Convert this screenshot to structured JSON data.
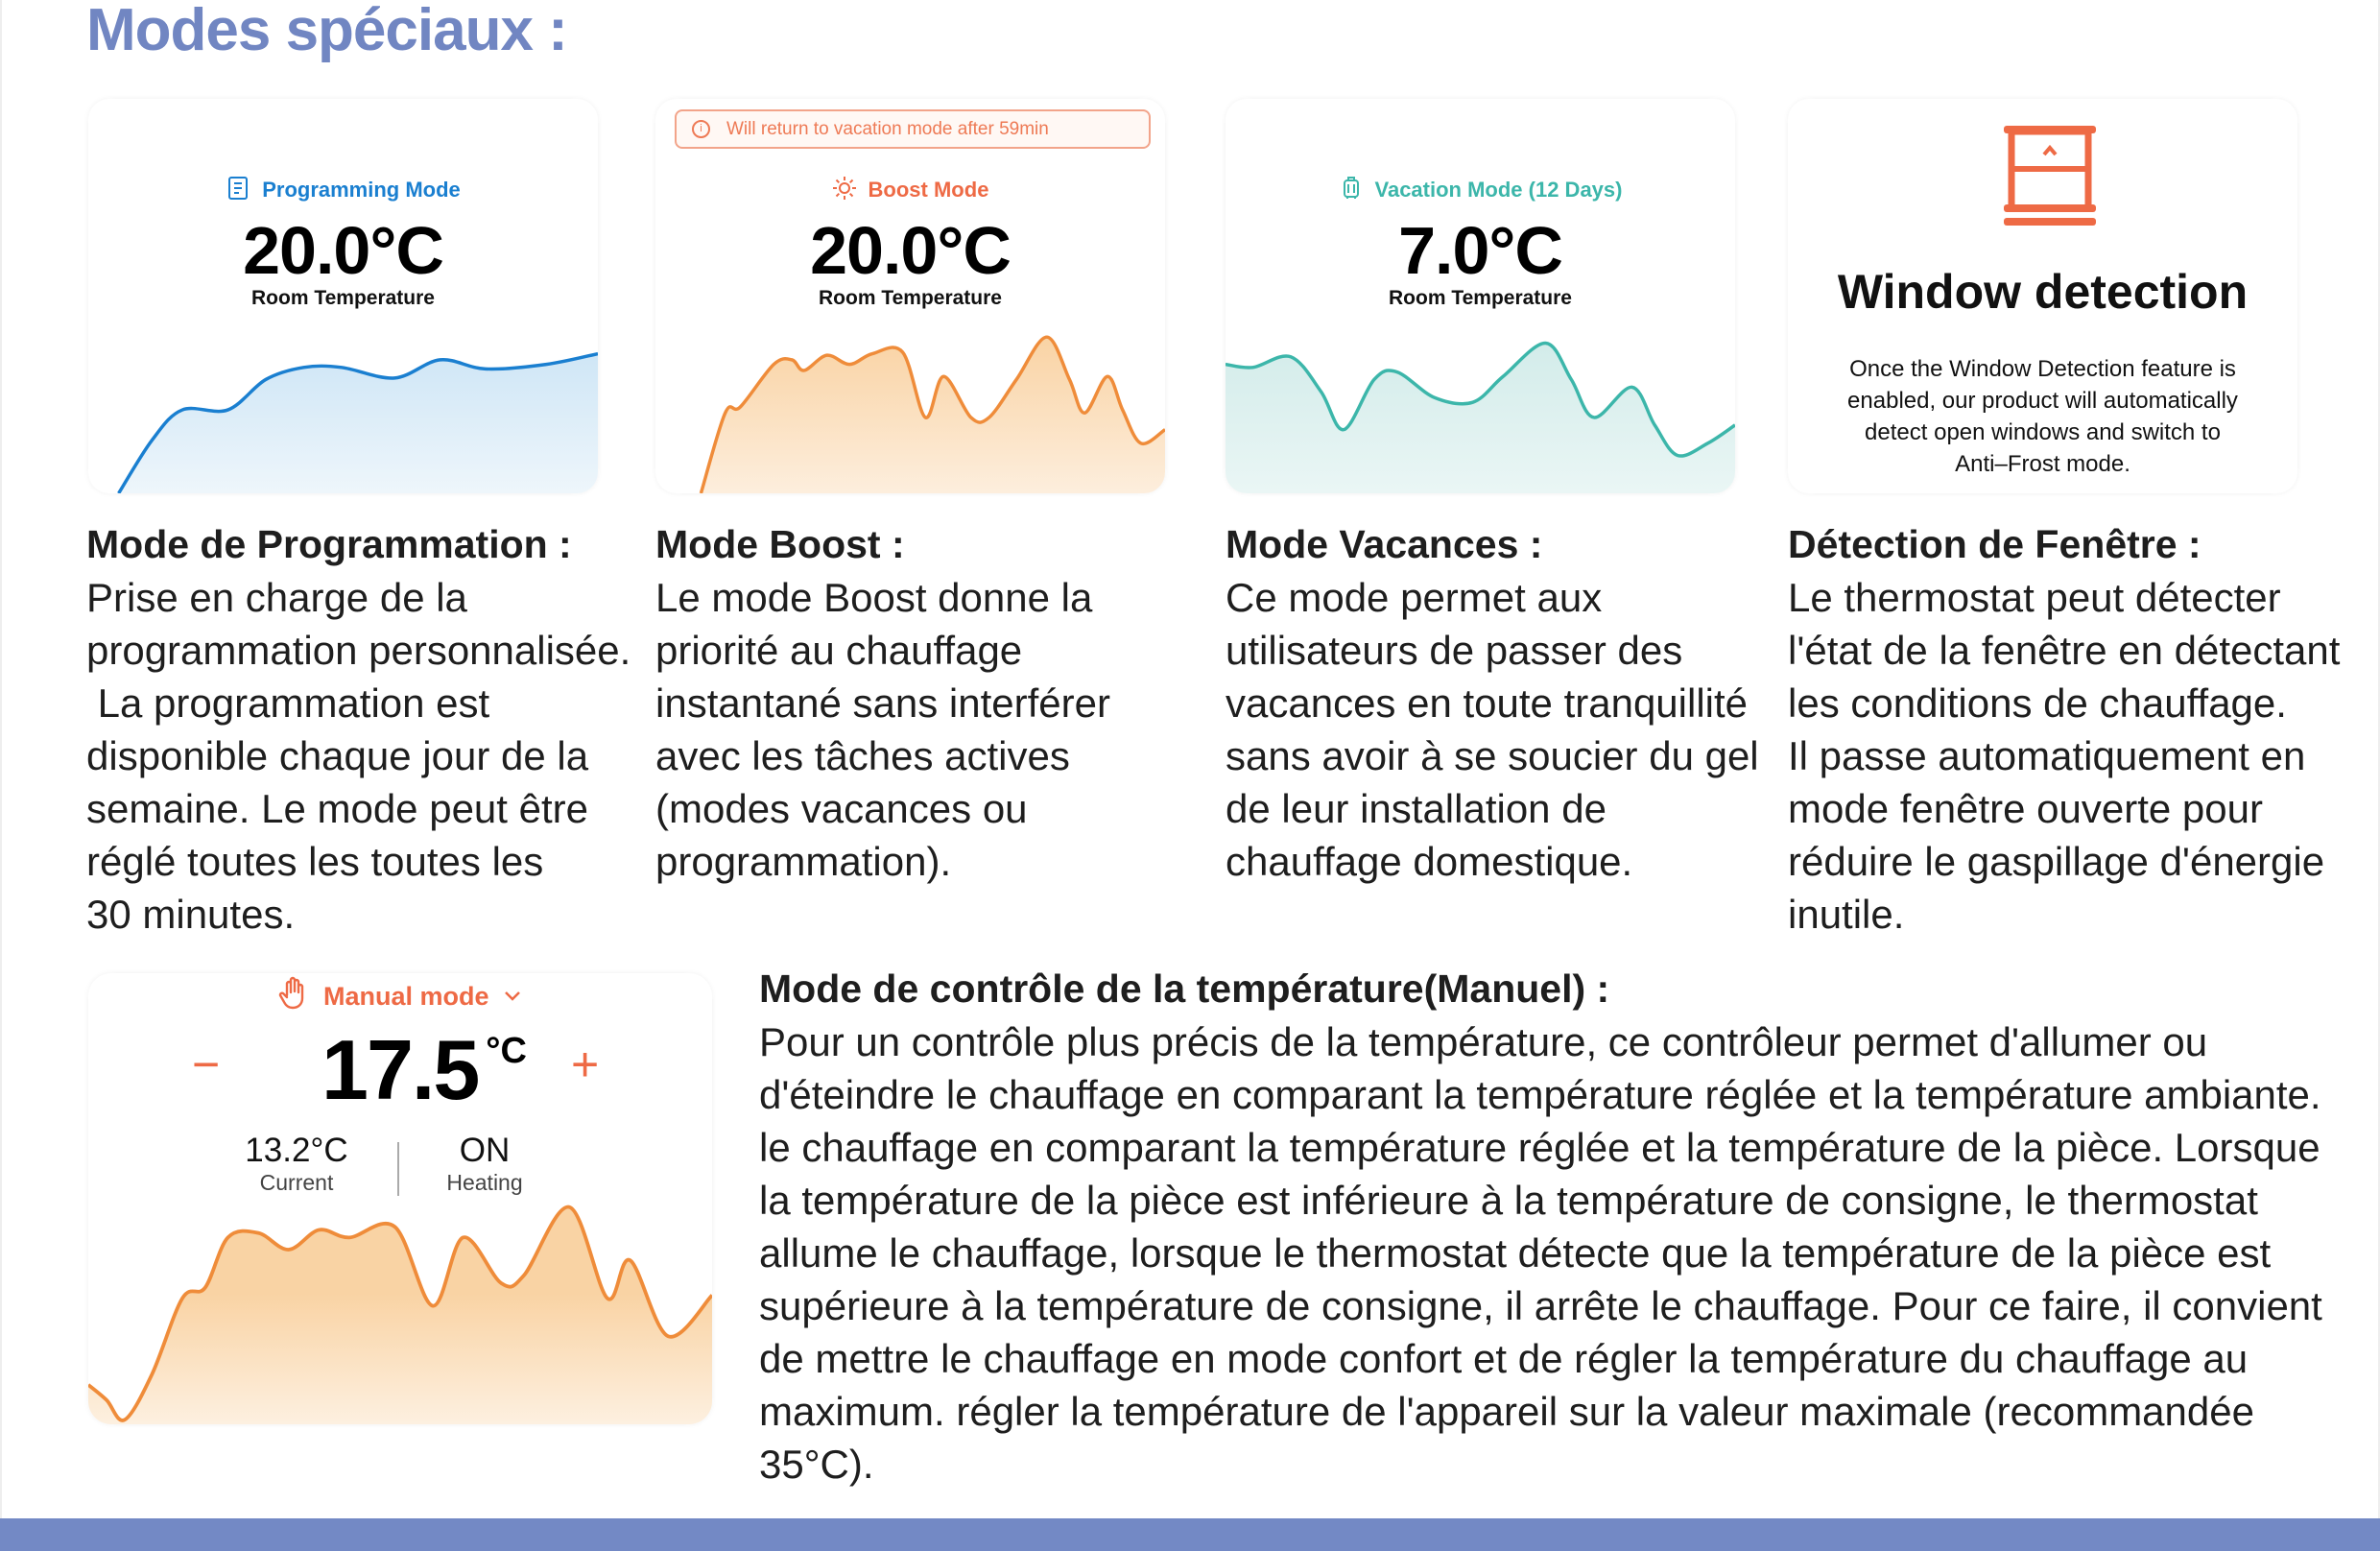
{
  "title": "Modes spéciaux :",
  "colors": {
    "title": "#7186c2",
    "blue": "#1a7fd0",
    "orange": "#ef8c3a",
    "teal": "#3cb6aa",
    "red": "#ee6a45",
    "footer": "#7389c5"
  },
  "cards": {
    "programming": {
      "icon": "list-icon",
      "mode": "Programming Mode",
      "temp": "20.0°C",
      "label": "Room Temperature"
    },
    "boost": {
      "alert_icon": "info-icon",
      "alert": "Will return to vacation mode after 59min",
      "icon": "sun-icon",
      "mode": "Boost Mode",
      "temp": "20.0°C",
      "label": "Room Temperature"
    },
    "vacation": {
      "icon": "suitcase-icon",
      "mode": "Vacation Mode (12 Days)",
      "temp": "7.0°C",
      "label": "Room Temperature"
    },
    "window": {
      "icon": "window-icon",
      "title": "Window detection",
      "desc": [
        "Once the Window Detection feature is",
        "enabled, our product will automatically",
        "detect open windows and switch to",
        "Anti–Frost mode."
      ]
    }
  },
  "columns": [
    {
      "heading": "Mode de Programmation :",
      "lines": [
        "Prise en charge de la",
        "programmation personnalisée.",
        " La programmation est",
        "disponible chaque jour de la",
        "semaine. Le mode peut être",
        "réglé toutes les toutes les",
        "30 minutes."
      ]
    },
    {
      "heading": "Mode Boost :",
      "lines": [
        "Le mode Boost donne la",
        "priorité au chauffage",
        "instantané sans interférer",
        "avec les tâches actives",
        "(modes vacances ou",
        "programmation)."
      ]
    },
    {
      "heading": "Mode Vacances :",
      "lines": [
        "Ce mode permet aux",
        "utilisateurs de passer des",
        "vacances en toute tranquillité",
        "sans avoir à se soucier du gel",
        "de leur installation de",
        "chauffage domestique."
      ]
    },
    {
      "heading": "Détection de Fenêtre :",
      "lines": [
        "Le thermostat peut détecter",
        "l'état de la fenêtre en détectant",
        "les conditions de chauffage.",
        "Il passe automatiquement en",
        "mode fenêtre ouverte pour",
        "réduire le gaspillage d'énergie",
        "inutile."
      ]
    }
  ],
  "manual": {
    "icon": "hand-icon",
    "mode": "Manual mode",
    "chevron": "chevron-down-icon",
    "minus": "−",
    "plus": "+",
    "setpoint": "17.5",
    "unit": "°C",
    "current_value": "13.2°C",
    "current_label": "Current",
    "heating_value": "ON",
    "heating_label": "Heating"
  },
  "manual_text": {
    "heading": "Mode de contrôle de la température(Manuel) :",
    "lines": [
      "Pour un contrôle plus précis de la température, ce contrôleur permet d'allumer ou",
      "d'éteindre le chauffage en comparant la température réglée et la température ambiante.",
      "le chauffage en comparant la température réglée et la température de la pièce. Lorsque",
      "la température de la pièce est inférieure à la température de consigne, le thermostat",
      "allume le chauffage, lorsque le thermostat détecte que la température de la pièce est",
      "supérieure à la température de consigne, il arrête le chauffage. Pour ce faire, il convient",
      "de mettre le chauffage en mode confort et de régler la température du chauffage au",
      "maximum. régler la température de l'appareil sur la valeur maximale (recommandée",
      "35°C)."
    ]
  }
}
